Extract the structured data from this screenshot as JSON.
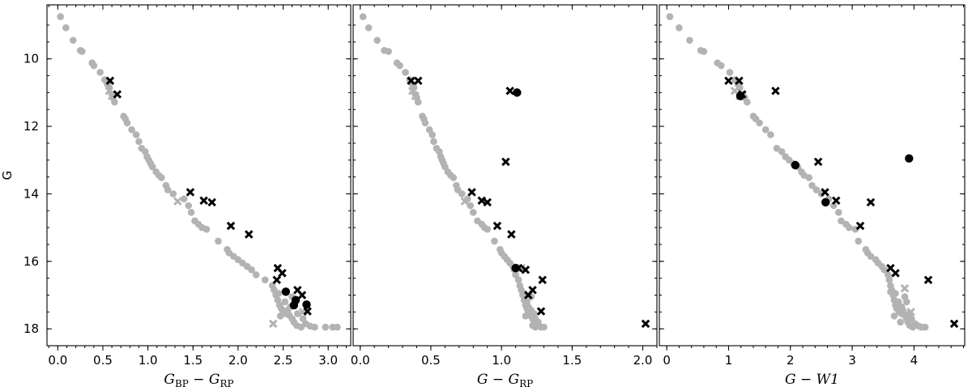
{
  "chart_data": {
    "type": "scatter",
    "ylabel": "G",
    "ylim": [
      18.5,
      8.4
    ],
    "y_inverted": true,
    "yticks": [
      10,
      12,
      14,
      16,
      18
    ],
    "colors": {
      "main_sequence": "#b3b3b3",
      "candidate": "#000000"
    },
    "panels": [
      {
        "xlabel": {
          "main": "G",
          "sub1": "BP",
          "sep": " − ",
          "main2": "G",
          "sub2": "RP"
        },
        "xlim": [
          -0.12,
          3.25
        ],
        "xticks": [
          0.0,
          0.5,
          1.0,
          1.5,
          2.0,
          2.5,
          3.0
        ],
        "xtick_labels": [
          "0.0",
          "0.5",
          "1.0",
          "1.5",
          "2.0",
          "2.5",
          "3.0"
        ],
        "grey_points": [
          [
            0.03,
            8.75
          ],
          [
            0.09,
            9.08
          ],
          [
            0.17,
            9.45
          ],
          [
            0.25,
            9.75
          ],
          [
            0.27,
            9.78
          ],
          [
            0.38,
            10.12
          ],
          [
            0.4,
            10.2
          ],
          [
            0.47,
            10.4
          ],
          [
            0.52,
            10.62
          ],
          [
            0.55,
            10.75
          ],
          [
            0.57,
            10.85
          ],
          [
            0.6,
            11.05
          ],
          [
            0.61,
            11.15
          ],
          [
            0.63,
            11.28
          ],
          [
            0.73,
            11.7
          ],
          [
            0.75,
            11.78
          ],
          [
            0.77,
            11.9
          ],
          [
            0.82,
            12.1
          ],
          [
            0.87,
            12.25
          ],
          [
            0.9,
            12.45
          ],
          [
            0.93,
            12.65
          ],
          [
            0.97,
            12.75
          ],
          [
            0.99,
            12.9
          ],
          [
            1.01,
            13.0
          ],
          [
            1.03,
            13.1
          ],
          [
            1.05,
            13.2
          ],
          [
            1.09,
            13.35
          ],
          [
            1.12,
            13.45
          ],
          [
            1.15,
            13.52
          ],
          [
            1.2,
            13.75
          ],
          [
            1.22,
            13.88
          ],
          [
            1.28,
            14.0
          ],
          [
            1.4,
            14.15
          ],
          [
            1.45,
            14.35
          ],
          [
            1.48,
            14.55
          ],
          [
            1.52,
            14.8
          ],
          [
            1.56,
            14.9
          ],
          [
            1.6,
            15.0
          ],
          [
            1.65,
            15.05
          ],
          [
            1.78,
            15.4
          ],
          [
            1.88,
            15.65
          ],
          [
            1.9,
            15.75
          ],
          [
            1.95,
            15.85
          ],
          [
            2.0,
            15.95
          ],
          [
            2.05,
            16.05
          ],
          [
            2.1,
            16.15
          ],
          [
            2.15,
            16.25
          ],
          [
            2.2,
            16.4
          ],
          [
            2.3,
            16.55
          ],
          [
            2.38,
            16.72
          ],
          [
            2.4,
            16.85
          ],
          [
            2.42,
            17.0
          ],
          [
            2.44,
            17.15
          ],
          [
            2.46,
            17.3
          ],
          [
            2.48,
            17.4
          ],
          [
            2.5,
            17.5
          ],
          [
            2.53,
            17.55
          ],
          [
            2.55,
            17.45
          ],
          [
            2.57,
            17.6
          ],
          [
            2.6,
            17.7
          ],
          [
            2.62,
            17.8
          ],
          [
            2.65,
            17.9
          ],
          [
            2.7,
            17.95
          ],
          [
            2.75,
            17.85
          ],
          [
            2.8,
            17.92
          ],
          [
            2.85,
            17.95
          ],
          [
            2.97,
            17.95
          ],
          [
            3.05,
            17.95
          ],
          [
            3.1,
            17.95
          ],
          [
            2.45,
            16.95
          ],
          [
            2.52,
            17.2
          ],
          [
            2.58,
            17.35
          ],
          [
            2.66,
            17.55
          ],
          [
            2.72,
            17.7
          ],
          [
            2.47,
            17.62
          ],
          [
            2.6,
            17.05
          ]
        ],
        "grey_crosses": [
          [
            0.57,
            10.95
          ],
          [
            0.6,
            11.1
          ],
          [
            1.33,
            14.22
          ],
          [
            2.39,
            17.85
          ],
          [
            2.72,
            17.5
          ]
        ],
        "black_crosses": [
          [
            0.58,
            10.65
          ],
          [
            0.66,
            11.05
          ],
          [
            1.47,
            13.95
          ],
          [
            1.62,
            14.2
          ],
          [
            1.71,
            14.25
          ],
          [
            1.92,
            14.95
          ],
          [
            2.12,
            15.2
          ],
          [
            2.44,
            16.2
          ],
          [
            2.49,
            16.35
          ],
          [
            2.43,
            16.55
          ],
          [
            2.66,
            16.85
          ],
          [
            2.71,
            17.0
          ],
          [
            2.77,
            17.48
          ]
        ],
        "black_dots": [
          [
            2.53,
            16.9
          ],
          [
            2.64,
            17.15
          ],
          [
            2.62,
            17.3
          ],
          [
            2.76,
            17.28
          ]
        ]
      },
      {
        "xlabel": {
          "main": "G",
          "sub1": "",
          "sep": " − ",
          "main2": "G",
          "sub2": "RP"
        },
        "xlim": [
          -0.05,
          2.1
        ],
        "xticks": [
          0.0,
          0.5,
          1.0,
          1.5,
          2.0
        ],
        "xtick_labels": [
          "0.0",
          "0.5",
          "1.0",
          "1.5",
          "2.0"
        ],
        "grey_points": [
          [
            0.02,
            8.75
          ],
          [
            0.06,
            9.08
          ],
          [
            0.12,
            9.45
          ],
          [
            0.17,
            9.75
          ],
          [
            0.2,
            9.78
          ],
          [
            0.26,
            10.12
          ],
          [
            0.28,
            10.2
          ],
          [
            0.32,
            10.4
          ],
          [
            0.35,
            10.62
          ],
          [
            0.37,
            10.75
          ],
          [
            0.38,
            10.85
          ],
          [
            0.39,
            11.05
          ],
          [
            0.4,
            11.15
          ],
          [
            0.41,
            11.28
          ],
          [
            0.44,
            11.7
          ],
          [
            0.45,
            11.78
          ],
          [
            0.46,
            11.9
          ],
          [
            0.49,
            12.1
          ],
          [
            0.51,
            12.25
          ],
          [
            0.52,
            12.45
          ],
          [
            0.54,
            12.65
          ],
          [
            0.56,
            12.75
          ],
          [
            0.57,
            12.9
          ],
          [
            0.58,
            13.0
          ],
          [
            0.59,
            13.1
          ],
          [
            0.6,
            13.2
          ],
          [
            0.62,
            13.35
          ],
          [
            0.64,
            13.45
          ],
          [
            0.66,
            13.52
          ],
          [
            0.68,
            13.75
          ],
          [
            0.69,
            13.88
          ],
          [
            0.72,
            14.0
          ],
          [
            0.76,
            14.15
          ],
          [
            0.78,
            14.35
          ],
          [
            0.8,
            14.55
          ],
          [
            0.83,
            14.8
          ],
          [
            0.86,
            14.9
          ],
          [
            0.88,
            15.0
          ],
          [
            0.9,
            15.05
          ],
          [
            0.95,
            15.4
          ],
          [
            0.99,
            15.65
          ],
          [
            1.0,
            15.75
          ],
          [
            1.02,
            15.85
          ],
          [
            1.04,
            15.95
          ],
          [
            1.06,
            16.05
          ],
          [
            1.08,
            16.15
          ],
          [
            1.09,
            16.25
          ],
          [
            1.1,
            16.4
          ],
          [
            1.12,
            16.55
          ],
          [
            1.13,
            16.72
          ],
          [
            1.14,
            16.85
          ],
          [
            1.15,
            17.0
          ],
          [
            1.16,
            17.15
          ],
          [
            1.17,
            17.3
          ],
          [
            1.18,
            17.4
          ],
          [
            1.19,
            17.5
          ],
          [
            1.2,
            17.55
          ],
          [
            1.21,
            17.45
          ],
          [
            1.2,
            17.6
          ],
          [
            1.22,
            17.7
          ],
          [
            1.23,
            17.8
          ],
          [
            1.22,
            17.9
          ],
          [
            1.24,
            17.95
          ],
          [
            1.25,
            17.85
          ],
          [
            1.27,
            17.92
          ],
          [
            1.28,
            17.95
          ],
          [
            1.3,
            17.95
          ],
          [
            1.16,
            16.95
          ],
          [
            1.18,
            17.2
          ],
          [
            1.19,
            17.35
          ],
          [
            1.21,
            17.05
          ],
          [
            1.23,
            17.55
          ],
          [
            1.24,
            17.7
          ],
          [
            1.17,
            17.62
          ],
          [
            1.26,
            17.8
          ]
        ],
        "grey_crosses": [
          [
            0.37,
            10.95
          ],
          [
            0.39,
            11.1
          ],
          [
            0.74,
            14.22
          ],
          [
            1.14,
            16.2
          ]
        ],
        "black_crosses": [
          [
            0.36,
            10.65
          ],
          [
            0.41,
            10.65
          ],
          [
            1.06,
            10.95
          ],
          [
            1.03,
            13.05
          ],
          [
            0.79,
            13.95
          ],
          [
            0.86,
            14.2
          ],
          [
            0.9,
            14.25
          ],
          [
            0.97,
            14.95
          ],
          [
            1.07,
            15.2
          ],
          [
            1.12,
            16.2
          ],
          [
            1.17,
            16.25
          ],
          [
            1.29,
            16.55
          ],
          [
            1.22,
            16.85
          ],
          [
            1.19,
            17.0
          ],
          [
            1.28,
            17.48
          ],
          [
            2.02,
            17.85
          ]
        ],
        "black_dots": [
          [
            1.11,
            11.0
          ],
          [
            1.1,
            16.2
          ]
        ]
      },
      {
        "xlabel": {
          "main": "G",
          "sub1": "",
          "sep": " − ",
          "main2": "W1",
          "sub2": ""
        },
        "xlim": [
          -0.12,
          4.82
        ],
        "xticks": [
          0,
          1,
          2,
          3,
          4
        ],
        "xtick_labels": [
          "0",
          "1",
          "2",
          "3",
          "4"
        ],
        "grey_points": [
          [
            0.05,
            8.75
          ],
          [
            0.2,
            9.08
          ],
          [
            0.37,
            9.45
          ],
          [
            0.55,
            9.75
          ],
          [
            0.6,
            9.78
          ],
          [
            0.82,
            10.12
          ],
          [
            0.88,
            10.2
          ],
          [
            1.02,
            10.4
          ],
          [
            1.1,
            10.62
          ],
          [
            1.15,
            10.75
          ],
          [
            1.18,
            10.85
          ],
          [
            1.23,
            11.05
          ],
          [
            1.26,
            11.15
          ],
          [
            1.3,
            11.28
          ],
          [
            1.4,
            11.7
          ],
          [
            1.44,
            11.78
          ],
          [
            1.5,
            11.9
          ],
          [
            1.6,
            12.1
          ],
          [
            1.68,
            12.25
          ],
          [
            1.78,
            12.65
          ],
          [
            1.86,
            12.75
          ],
          [
            1.92,
            12.9
          ],
          [
            1.98,
            13.0
          ],
          [
            2.05,
            13.1
          ],
          [
            2.12,
            13.2
          ],
          [
            2.18,
            13.35
          ],
          [
            2.22,
            13.45
          ],
          [
            2.3,
            13.52
          ],
          [
            2.35,
            13.75
          ],
          [
            2.42,
            13.88
          ],
          [
            2.5,
            14.0
          ],
          [
            2.62,
            14.15
          ],
          [
            2.7,
            14.35
          ],
          [
            2.78,
            14.55
          ],
          [
            2.82,
            14.8
          ],
          [
            2.9,
            14.9
          ],
          [
            2.95,
            15.0
          ],
          [
            3.05,
            15.05
          ],
          [
            3.1,
            15.4
          ],
          [
            3.22,
            15.65
          ],
          [
            3.25,
            15.75
          ],
          [
            3.3,
            15.85
          ],
          [
            3.38,
            15.95
          ],
          [
            3.42,
            16.05
          ],
          [
            3.48,
            16.15
          ],
          [
            3.52,
            16.25
          ],
          [
            3.58,
            16.4
          ],
          [
            3.6,
            16.55
          ],
          [
            3.62,
            16.72
          ],
          [
            3.64,
            16.85
          ],
          [
            3.66,
            17.0
          ],
          [
            3.68,
            17.15
          ],
          [
            3.7,
            17.3
          ],
          [
            3.72,
            17.4
          ],
          [
            3.76,
            17.5
          ],
          [
            3.8,
            17.55
          ],
          [
            3.82,
            17.45
          ],
          [
            3.85,
            17.6
          ],
          [
            3.88,
            17.7
          ],
          [
            3.9,
            17.8
          ],
          [
            3.93,
            17.9
          ],
          [
            3.98,
            17.95
          ],
          [
            4.02,
            17.85
          ],
          [
            4.08,
            17.92
          ],
          [
            4.12,
            17.95
          ],
          [
            4.18,
            17.95
          ],
          [
            3.7,
            16.95
          ],
          [
            3.75,
            17.2
          ],
          [
            3.8,
            17.35
          ],
          [
            3.85,
            17.05
          ],
          [
            3.92,
            17.55
          ],
          [
            3.96,
            17.7
          ],
          [
            3.68,
            17.62
          ],
          [
            3.78,
            17.8
          ],
          [
            3.62,
            16.9
          ],
          [
            3.88,
            17.2
          ]
        ],
        "grey_crosses": [
          [
            1.1,
            10.95
          ],
          [
            1.18,
            11.1
          ],
          [
            3.85,
            16.8
          ],
          [
            3.95,
            17.5
          ]
        ],
        "black_crosses": [
          [
            1.0,
            10.65
          ],
          [
            1.17,
            10.65
          ],
          [
            1.22,
            11.05
          ],
          [
            1.76,
            10.95
          ],
          [
            2.45,
            13.05
          ],
          [
            2.56,
            13.95
          ],
          [
            2.74,
            14.2
          ],
          [
            3.3,
            14.25
          ],
          [
            3.13,
            14.95
          ],
          [
            3.62,
            16.2
          ],
          [
            3.7,
            16.35
          ],
          [
            4.23,
            16.55
          ],
          [
            4.65,
            17.85
          ]
        ],
        "black_dots": [
          [
            1.19,
            11.1
          ],
          [
            2.08,
            13.15
          ],
          [
            2.57,
            14.25
          ],
          [
            3.92,
            12.95
          ]
        ]
      }
    ]
  }
}
